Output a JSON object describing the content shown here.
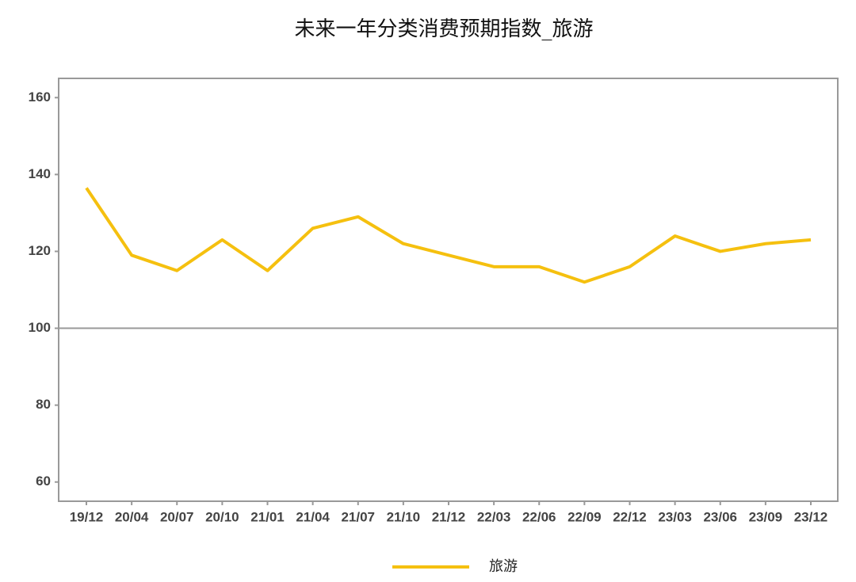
{
  "chart_data": {
    "type": "line",
    "title": "未来一年分类消费预期指数_旅游",
    "categories": [
      "19/12",
      "20/04",
      "20/07",
      "20/10",
      "21/01",
      "21/04",
      "21/07",
      "21/10",
      "21/12",
      "22/03",
      "22/06",
      "22/09",
      "22/12",
      "23/03",
      "23/06",
      "23/09",
      "23/12"
    ],
    "series": [
      {
        "name": "旅游",
        "color": "#f5c00f",
        "values": [
          136.5,
          119,
          115,
          123,
          115,
          126,
          129,
          122,
          119,
          116,
          116,
          112,
          116,
          124,
          120,
          122,
          123
        ]
      }
    ],
    "ylim": [
      55,
      165
    ],
    "yticks": [
      60,
      80,
      100,
      120,
      140,
      160
    ],
    "reference_line": 100,
    "grid": false,
    "legend": "bottom"
  }
}
